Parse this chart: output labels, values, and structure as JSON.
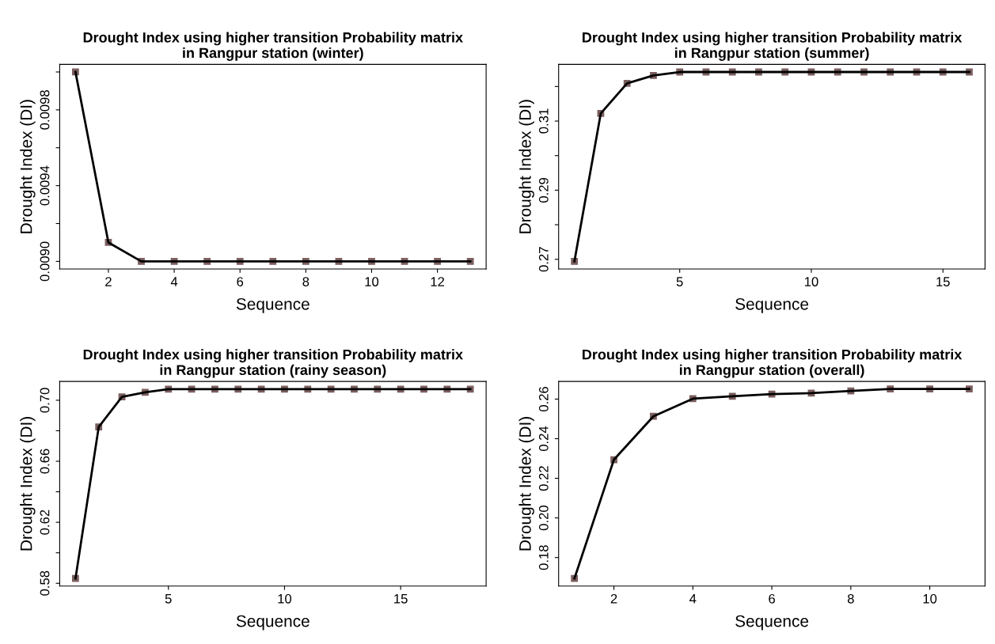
{
  "chart_data": [
    {
      "type": "line",
      "title": "Drought Index using higher transition Probability matrix\nin Rangpur station (winter)",
      "xlabel": "Sequence",
      "ylabel": "Drought Index (DI)",
      "marker": "square",
      "line_style": "solid",
      "grid": false,
      "x": [
        1,
        2,
        3,
        4,
        5,
        6,
        7,
        8,
        9,
        10,
        11,
        12,
        13
      ],
      "series": [
        {
          "color": "#000000",
          "colors": [
            "#7b5e5e",
            "#7b5e5e",
            "#7b5e5e",
            "#7b5e5e",
            "#7b5e5e",
            "#7b5e5e",
            "#7b5e5e",
            "#7b5e5e",
            "#7b5e5e",
            "#7b5e5e",
            "#7b5e5e",
            "#7b5e5e",
            "#7b5e5e"
          ],
          "values": [
            0.01,
            0.0091,
            0.009,
            0.009,
            0.009,
            0.009,
            0.009,
            0.009,
            0.009,
            0.009,
            0.009,
            0.009,
            0.009
          ]
        }
      ],
      "xlim": [
        0.52,
        13.48
      ],
      "xticks": [
        2,
        4,
        6,
        8,
        10,
        12
      ],
      "ylim": [
        0.00896,
        0.01004
      ],
      "yticks": [
        {
          "value": 0.009,
          "label": "0.0090"
        },
        {
          "value": 0.0092,
          "label": null
        },
        {
          "value": 0.0094,
          "label": "0.0094"
        },
        {
          "value": 0.0096,
          "label": null
        },
        {
          "value": 0.0098,
          "label": "0.0098"
        },
        {
          "value": 0.01,
          "label": null
        }
      ]
    },
    {
      "type": "line",
      "title": "Drought Index using higher transition Probability matrix\nin Rangpur station (summer)",
      "xlabel": "Sequence",
      "ylabel": "Drought Index (DI)",
      "marker": "square",
      "line_style": "solid",
      "grid": false,
      "x": [
        1,
        2,
        3,
        4,
        5,
        6,
        7,
        8,
        9,
        10,
        11,
        12,
        13,
        14,
        15,
        16
      ],
      "series": [
        {
          "color": "#000000",
          "colors": [
            "#7b5e5e",
            "#7b5e5e",
            "#7b5e5e",
            "#7b5e5e",
            "#7b5e5e",
            "#7b5e5e",
            "#7b5e5e",
            "#7b5e5e",
            "#7b5e5e",
            "#7b5e5e",
            "#7b5e5e",
            "#7b5e5e",
            "#7b5e5e",
            "#7b5e5e",
            "#7b5e5e",
            "#7b5e5e"
          ],
          "values": [
            0.2694,
            0.3122,
            0.3209,
            0.3232,
            0.3242,
            0.3242,
            0.3242,
            0.3242,
            0.3242,
            0.3242,
            0.3242,
            0.3242,
            0.3242,
            0.3242,
            0.3242,
            0.3242
          ]
        }
      ],
      "xlim": [
        0.4,
        16.6
      ],
      "xticks": [
        5,
        10,
        15
      ],
      "ylim": [
        0.2672,
        0.3264
      ],
      "yticks": [
        {
          "value": 0.27,
          "label": "0.27"
        },
        {
          "value": 0.28,
          "label": null
        },
        {
          "value": 0.29,
          "label": "0.29"
        },
        {
          "value": 0.3,
          "label": null
        },
        {
          "value": 0.31,
          "label": "0.31"
        },
        {
          "value": 0.32,
          "label": null
        }
      ]
    },
    {
      "type": "line",
      "title": "Drought Index using higher transition Probability matrix\nin Rangpur station (rainy season)",
      "xlabel": "Sequence",
      "ylabel": "Drought Index (DI)",
      "marker": "square",
      "line_style": "solid",
      "grid": false,
      "x": [
        1,
        2,
        3,
        4,
        5,
        6,
        7,
        8,
        9,
        10,
        11,
        12,
        13,
        14,
        15,
        16,
        17,
        18
      ],
      "series": [
        {
          "color": "#000000",
          "colors": [
            "#7b5e5e",
            "#7b5e5e",
            "#7b5e5e",
            "#7b5e5e",
            "#7b5e5e",
            "#7b5e5e",
            "#7b5e5e",
            "#7b5e5e",
            "#7b5e5e",
            "#7b5e5e",
            "#7b5e5e",
            "#7b5e5e",
            "#7b5e5e",
            "#7b5e5e",
            "#7b5e5e",
            "#7b5e5e",
            "#7b5e5e",
            "#7b5e5e"
          ],
          "values": [
            0.5832,
            0.6825,
            0.7022,
            0.7052,
            0.7073,
            0.7073,
            0.7073,
            0.7073,
            0.7073,
            0.7073,
            0.7073,
            0.7073,
            0.7073,
            0.7073,
            0.7073,
            0.7073,
            0.7073,
            0.7073
          ]
        }
      ],
      "xlim": [
        0.32,
        18.68
      ],
      "xticks": [
        5,
        10,
        15
      ],
      "ylim": [
        0.5782,
        0.7123
      ],
      "yticks": [
        {
          "value": 0.58,
          "label": "0.58"
        },
        {
          "value": 0.6,
          "label": null
        },
        {
          "value": 0.62,
          "label": "0.62"
        },
        {
          "value": 0.64,
          "label": null
        },
        {
          "value": 0.66,
          "label": "0.66"
        },
        {
          "value": 0.68,
          "label": null
        },
        {
          "value": 0.7,
          "label": "0.70"
        }
      ]
    },
    {
      "type": "line",
      "title": "Drought Index using higher transition Probability matrix\nin Rangpur station (overall)",
      "xlabel": "Sequence",
      "ylabel": "Drought Index (DI)",
      "marker": "square",
      "line_style": "solid",
      "grid": false,
      "x": [
        1,
        2,
        3,
        4,
        5,
        6,
        7,
        8,
        9,
        10,
        11
      ],
      "series": [
        {
          "color": "#000000",
          "colors": [
            "#7b5e5e",
            "#7b5e5e",
            "#7b5e5e",
            "#7b5e5e",
            "#7b5e5e",
            "#7b5e5e",
            "#7b5e5e",
            "#7b5e5e",
            "#7b5e5e",
            "#7b5e5e",
            "#7b5e5e"
          ],
          "values": [
            0.1694,
            0.2294,
            0.2513,
            0.2602,
            0.2614,
            0.2625,
            0.263,
            0.2641,
            0.2651,
            0.2651,
            0.2651
          ]
        }
      ],
      "xlim": [
        0.6,
        11.4
      ],
      "xticks": [
        2,
        4,
        6,
        8,
        10
      ],
      "ylim": [
        0.1656,
        0.2689
      ],
      "yticks": [
        {
          "value": 0.18,
          "label": "0.18"
        },
        {
          "value": 0.2,
          "label": "0.20"
        },
        {
          "value": 0.22,
          "label": "0.22"
        },
        {
          "value": 0.24,
          "label": "0.24"
        },
        {
          "value": 0.26,
          "label": "0.26"
        }
      ]
    }
  ]
}
